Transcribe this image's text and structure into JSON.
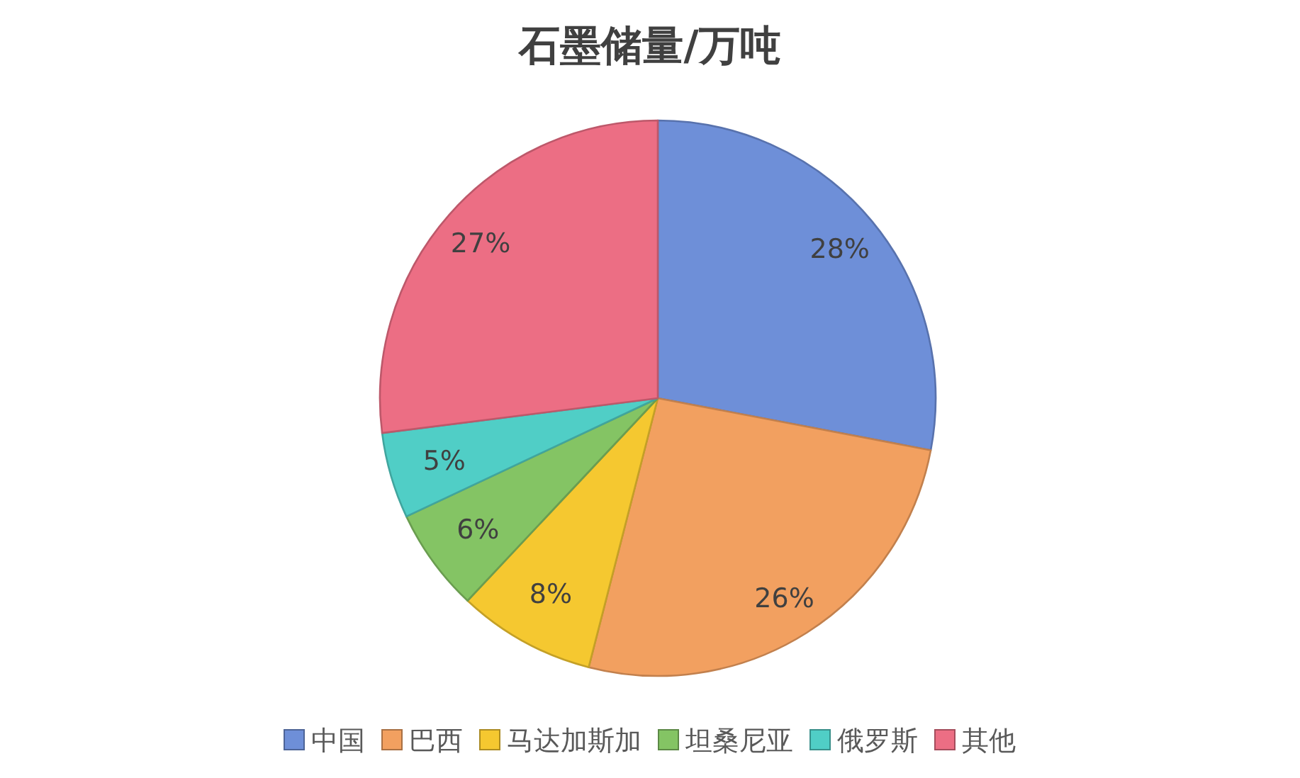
{
  "chart_data": {
    "type": "pie",
    "title": "石墨储量/万吨",
    "categories": [
      "中国",
      "巴西",
      "马达加斯加",
      "坦桑尼亚",
      "俄罗斯",
      "其他"
    ],
    "values": [
      28,
      26,
      8,
      6,
      5,
      27
    ],
    "value_labels": [
      "28%",
      "26%",
      "8%",
      "6%",
      "5%",
      "27%"
    ],
    "colors": [
      "#6e8fd8",
      "#f2a060",
      "#f5c830",
      "#84c464",
      "#50cec6",
      "#ec6e84"
    ],
    "legend": "bottom"
  }
}
